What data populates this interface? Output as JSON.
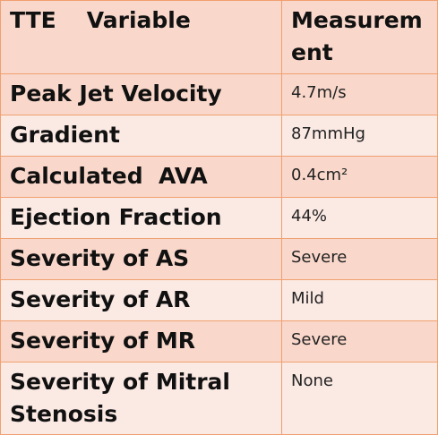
{
  "header": {
    "col1_part1": "TTE",
    "col1_part2": "Variable",
    "col2": "Measurement"
  },
  "rows": [
    {
      "variable": "Peak Jet Velocity",
      "measurement": "4.7m/s"
    },
    {
      "variable": "Gradient",
      "measurement": "87mmHg"
    },
    {
      "variable": "Calculated  AVA",
      "measurement": "0.4cm²"
    },
    {
      "variable": "Ejection Fraction",
      "measurement": "44%"
    },
    {
      "variable": "Severity of AS",
      "measurement": "Severe"
    },
    {
      "variable": "Severity of AR",
      "measurement": "Mild"
    },
    {
      "variable": "Severity of MR",
      "measurement": "Severe"
    },
    {
      "variable": "Severity of Mitral Stenosis",
      "measurement": "None"
    }
  ],
  "colors": {
    "border": "#f0a070",
    "shade_dark": "#f9d7ca",
    "shade_light": "#fbe9e3"
  }
}
